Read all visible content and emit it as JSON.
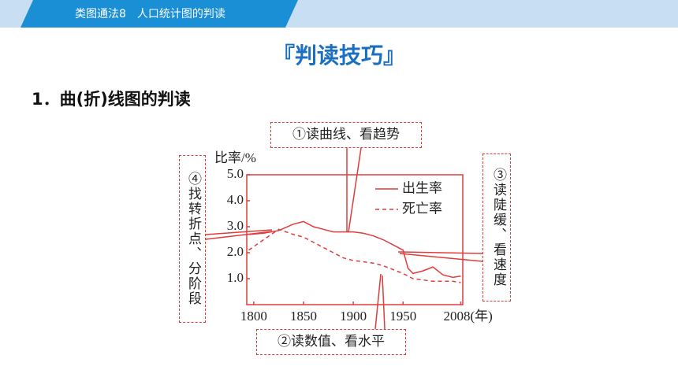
{
  "header": {
    "title": "类图通法8　人口统计图的判读"
  },
  "section_title": "『判读技巧』",
  "subtitle": "1．曲(折)线图的判读",
  "chart_data": {
    "type": "line",
    "y_label": "比率/%",
    "x": [
      1795,
      1810,
      1825,
      1840,
      1850,
      1860,
      1870,
      1880,
      1890,
      1900,
      1910,
      1920,
      1930,
      1940,
      1950,
      1955,
      1960,
      1970,
      1980,
      1990,
      2000,
      2008
    ],
    "series": [
      {
        "name": "出生率",
        "color": "#e03c3c",
        "dash": false,
        "values": [
          2.7,
          2.75,
          2.85,
          3.1,
          3.2,
          3.0,
          2.9,
          2.8,
          2.8,
          2.8,
          2.75,
          2.65,
          2.5,
          2.3,
          2.1,
          1.4,
          1.2,
          1.3,
          1.45,
          1.15,
          1.05,
          1.1
        ]
      },
      {
        "name": "死亡率",
        "color": "#e03c3c",
        "dash": true,
        "values": [
          2.1,
          2.5,
          2.9,
          2.7,
          2.6,
          2.4,
          2.2,
          2.0,
          1.8,
          1.7,
          1.65,
          1.6,
          1.5,
          1.35,
          1.2,
          1.1,
          1.0,
          0.95,
          0.9,
          0.9,
          0.9,
          0.85
        ]
      }
    ],
    "xlim": [
      1793,
      2010
    ],
    "ylim": [
      0,
      5
    ],
    "xticks": [
      1800,
      1850,
      1900,
      1950,
      {
        "value": 2008,
        "label": "2008(年)"
      }
    ],
    "yticks": [
      {
        "value": 1,
        "label": "1.0"
      },
      {
        "value": 2,
        "label": "2.0"
      },
      {
        "value": 3,
        "label": "3.0"
      },
      {
        "value": 4,
        "label": "4.0"
      },
      {
        "value": 5,
        "label": "5.0"
      }
    ],
    "annotations": [
      "①读曲线、看趋势",
      "②读数值、看水平",
      "③读陡缓、看速度",
      "④找转折点、分阶段"
    ]
  }
}
